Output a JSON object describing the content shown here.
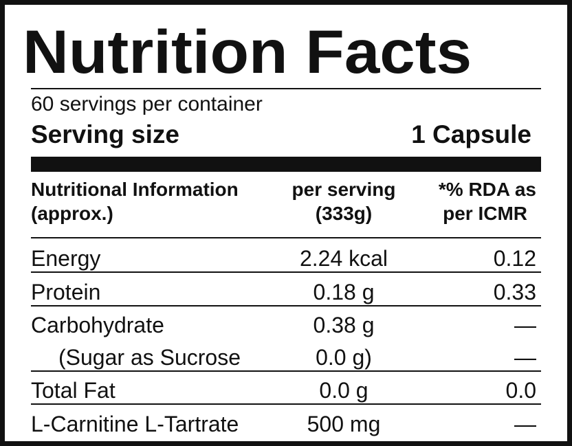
{
  "header": {
    "title": "Nutrition Facts",
    "servings": "60 servings per container",
    "serving_size_label": "Serving size",
    "serving_size_value": "1 Capsule"
  },
  "table": {
    "columns": [
      [
        "Nutritional Information",
        "(approx.)"
      ],
      [
        "per serving",
        "(333g)"
      ],
      [
        "*% RDA as",
        "per ICMR"
      ]
    ],
    "rows": [
      [
        "Energy",
        "2.24 kcal",
        "0.12"
      ],
      [
        "Protein",
        "0.18 g",
        "0.33"
      ],
      [
        "Carbohydrate",
        "0.38 g",
        "—"
      ],
      [
        "(Sugar as Sucrose",
        "0.0 g)",
        "—"
      ],
      [
        "Total Fat",
        "0.0 g",
        "0.0"
      ],
      [
        "L-Carnitine L-Tartrate",
        "500 mg",
        "—"
      ]
    ]
  }
}
